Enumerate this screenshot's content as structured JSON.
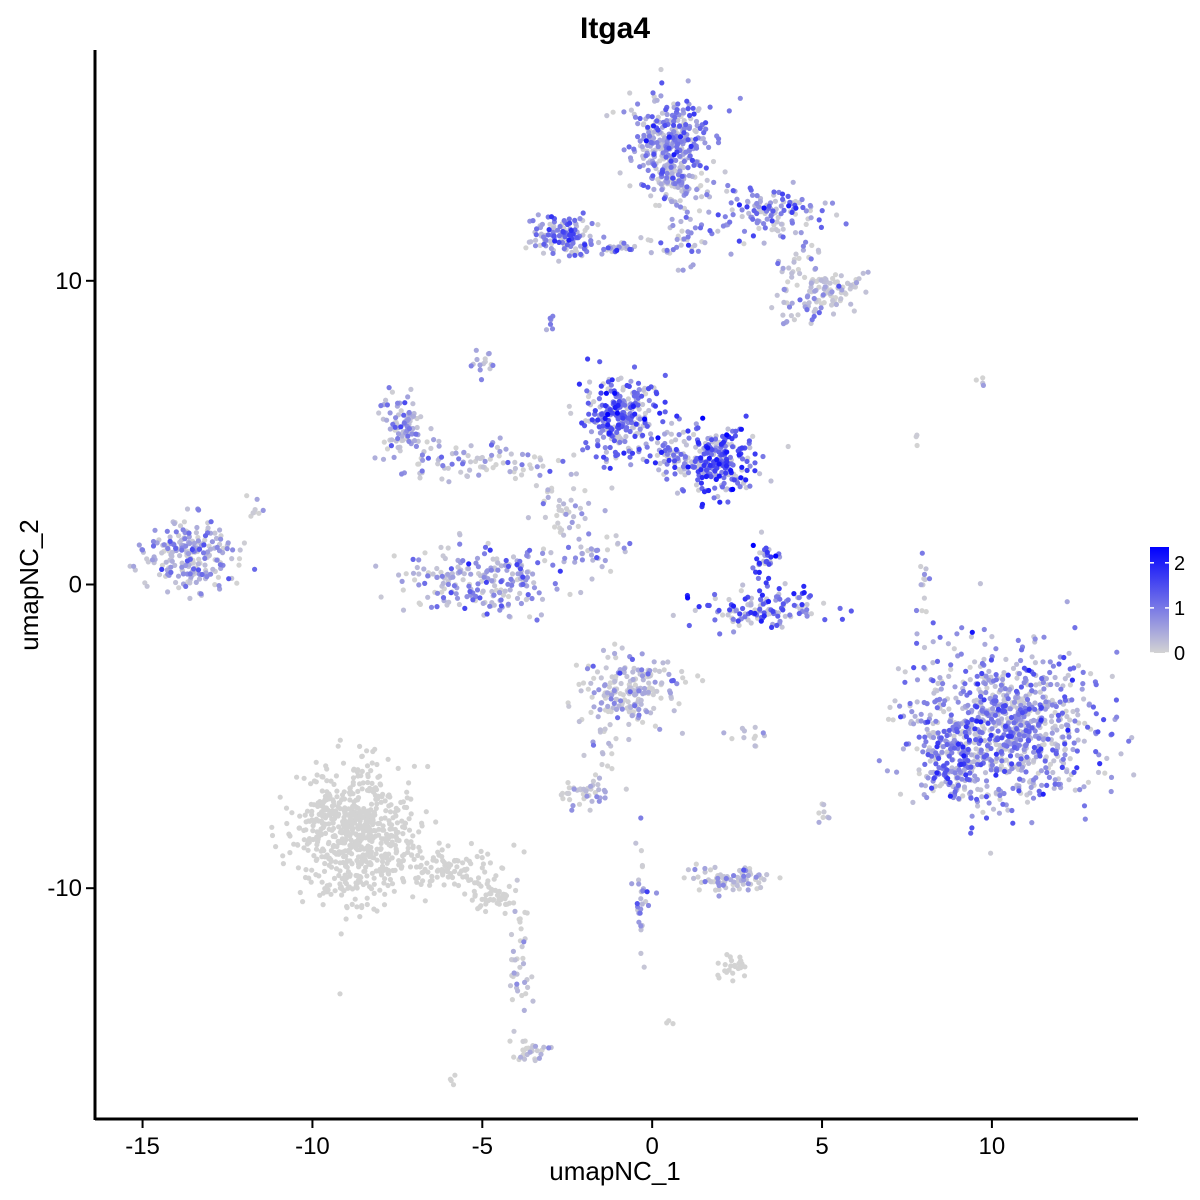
{
  "chart_data": {
    "type": "scatter",
    "title": "Itga4",
    "xlabel": "umapNC_1",
    "ylabel": "umapNC_2",
    "xlim": [
      -16.4,
      14.3
    ],
    "ylim": [
      -17.6,
      17.6
    ],
    "x_ticks": [
      -15,
      -10,
      -5,
      0,
      5,
      10
    ],
    "x_tick_labels": [
      "-15",
      "-10",
      "-5",
      "0",
      "5",
      "10"
    ],
    "y_ticks": [
      -10,
      0,
      10
    ],
    "y_tick_labels": [
      "-10",
      "0",
      "10"
    ],
    "grid": false,
    "legend": {
      "placement": "right",
      "type": "colorbar",
      "labels": [
        "2",
        "1",
        "0"
      ],
      "values": [
        2,
        1,
        0
      ],
      "range": [
        0,
        2.35
      ]
    },
    "color_low": "#d3d3d3",
    "color_high": "#0000ff",
    "clusters": [
      {
        "cx": 0.5,
        "cy": 14.5,
        "sx": 0.55,
        "sy": 0.75,
        "n": 320,
        "expr": 0.85
      },
      {
        "cx": 0.7,
        "cy": 13.2,
        "sx": 0.35,
        "sy": 0.45,
        "n": 80,
        "expr": 0.35
      },
      {
        "cx": -2.6,
        "cy": 11.5,
        "sx": 0.45,
        "sy": 0.35,
        "n": 120,
        "expr": 1.1
      },
      {
        "cx": -1.0,
        "cy": 11.1,
        "sx": 0.9,
        "sy": 0.15,
        "n": 40,
        "expr": 0.8
      },
      {
        "cx": 1.1,
        "cy": 11.3,
        "sx": 0.3,
        "sy": 0.45,
        "n": 30,
        "expr": 0.6
      },
      {
        "cx": 3.4,
        "cy": 12.2,
        "sx": 0.85,
        "sy": 0.45,
        "n": 130,
        "expr": 0.9
      },
      {
        "cx": 5.3,
        "cy": 9.7,
        "sx": 0.55,
        "sy": 0.3,
        "n": 90,
        "expr": 0.1
      },
      {
        "cx": 4.2,
        "cy": 8.9,
        "sx": 0.35,
        "sy": 0.25,
        "n": 25,
        "expr": 0.7
      },
      {
        "cx": 4.3,
        "cy": 10.7,
        "sx": 0.4,
        "sy": 0.4,
        "n": 25,
        "expr": 0.3
      },
      {
        "cx": -1.0,
        "cy": 5.5,
        "sx": 0.55,
        "sy": 0.7,
        "n": 280,
        "expr": 1.25
      },
      {
        "cx": 1.9,
        "cy": 4.1,
        "sx": 0.55,
        "sy": 0.55,
        "n": 240,
        "expr": 1.35
      },
      {
        "cx": 0.6,
        "cy": 4.3,
        "sx": 0.5,
        "sy": 0.3,
        "n": 60,
        "expr": 0.9
      },
      {
        "cx": -7.3,
        "cy": 5.3,
        "sx": 0.3,
        "sy": 0.5,
        "n": 90,
        "expr": 0.65
      },
      {
        "cx": -6.0,
        "cy": 4.0,
        "sx": 0.9,
        "sy": 0.3,
        "n": 50,
        "expr": 0.55
      },
      {
        "cx": -4.3,
        "cy": 4.1,
        "sx": 0.8,
        "sy": 0.35,
        "n": 40,
        "expr": 0.5
      },
      {
        "cx": -2.5,
        "cy": 2.6,
        "sx": 0.4,
        "sy": 0.45,
        "n": 40,
        "expr": 0.3
      },
      {
        "cx": -4.8,
        "cy": 0.1,
        "sx": 1.2,
        "sy": 0.55,
        "n": 230,
        "expr": 0.55
      },
      {
        "cx": -1.7,
        "cy": 1.2,
        "sx": 0.55,
        "sy": 0.35,
        "n": 30,
        "expr": 0.45
      },
      {
        "cx": 3.3,
        "cy": 0.7,
        "sx": 0.2,
        "sy": 0.4,
        "n": 35,
        "expr": 1.2
      },
      {
        "cx": 3.3,
        "cy": -0.8,
        "sx": 1.0,
        "sy": 0.3,
        "n": 130,
        "expr": 1.15
      },
      {
        "cx": -13.6,
        "cy": 1.0,
        "sx": 0.65,
        "sy": 0.6,
        "n": 230,
        "expr": 0.55
      },
      {
        "cx": 10.4,
        "cy": -4.7,
        "sx": 1.3,
        "sy": 1.25,
        "n": 900,
        "expr": 0.85
      },
      {
        "cx": 8.8,
        "cy": -5.8,
        "sx": 0.45,
        "sy": 0.6,
        "n": 130,
        "expr": 1.0
      },
      {
        "cx": -0.6,
        "cy": -3.5,
        "sx": 0.7,
        "sy": 0.55,
        "n": 200,
        "expr": 0.12
      },
      {
        "cx": -1.5,
        "cy": -5.5,
        "sx": 0.25,
        "sy": 0.7,
        "n": 25,
        "expr": 0.2
      },
      {
        "cx": -8.7,
        "cy": -8.2,
        "sx": 0.85,
        "sy": 1.1,
        "n": 650,
        "expr": 0.0
      },
      {
        "cx": -6.2,
        "cy": -9.3,
        "sx": 0.85,
        "sy": 0.35,
        "n": 110,
        "expr": 0.0
      },
      {
        "cx": -4.6,
        "cy": -10.3,
        "sx": 0.4,
        "sy": 0.2,
        "n": 45,
        "expr": 0.0
      },
      {
        "cx": -3.9,
        "cy": -12.6,
        "sx": 0.15,
        "sy": 1.6,
        "n": 45,
        "expr": 0.05
      },
      {
        "cx": -3.6,
        "cy": -15.3,
        "sx": 0.25,
        "sy": 0.2,
        "n": 25,
        "expr": 0.2
      },
      {
        "cx": 2.4,
        "cy": -9.7,
        "sx": 0.55,
        "sy": 0.2,
        "n": 80,
        "expr": 0.2
      },
      {
        "cx": -2.1,
        "cy": -6.9,
        "sx": 0.35,
        "sy": 0.2,
        "n": 40,
        "expr": 0.15
      },
      {
        "cx": 2.3,
        "cy": -12.6,
        "sx": 0.3,
        "sy": 0.2,
        "n": 25,
        "expr": 0.0
      },
      {
        "cx": -0.3,
        "cy": -10.5,
        "sx": 0.12,
        "sy": 1.0,
        "n": 30,
        "expr": 0.6
      },
      {
        "cx": 8.0,
        "cy": -0.1,
        "sx": 0.12,
        "sy": 0.7,
        "n": 15,
        "expr": 0.4
      },
      {
        "cx": 3.0,
        "cy": -5.0,
        "sx": 0.3,
        "sy": 0.15,
        "n": 12,
        "expr": 0.1
      },
      {
        "cx": -5.0,
        "cy": 7.2,
        "sx": 0.2,
        "sy": 0.3,
        "n": 15,
        "expr": 0.6
      },
      {
        "cx": -3.0,
        "cy": 8.6,
        "sx": 0.1,
        "sy": 0.15,
        "n": 6,
        "expr": 0.6
      },
      {
        "cx": 9.7,
        "cy": 6.7,
        "sx": 0.1,
        "sy": 0.1,
        "n": 4,
        "expr": 0.1
      },
      {
        "cx": -11.8,
        "cy": 2.5,
        "sx": 0.2,
        "sy": 0.2,
        "n": 8,
        "expr": 0.1
      },
      {
        "cx": 5.1,
        "cy": -7.5,
        "sx": 0.1,
        "sy": 0.25,
        "n": 8,
        "expr": 0.1
      },
      {
        "cx": -6.0,
        "cy": -16.3,
        "sx": 0.1,
        "sy": 0.1,
        "n": 4,
        "expr": 0.0
      },
      {
        "cx": 0.6,
        "cy": -14.4,
        "sx": 0.1,
        "sy": 0.1,
        "n": 3,
        "expr": 0.0
      },
      {
        "cx": 7.8,
        "cy": 4.8,
        "sx": 0.1,
        "sy": 0.2,
        "n": 3,
        "expr": 0.3
      }
    ]
  }
}
